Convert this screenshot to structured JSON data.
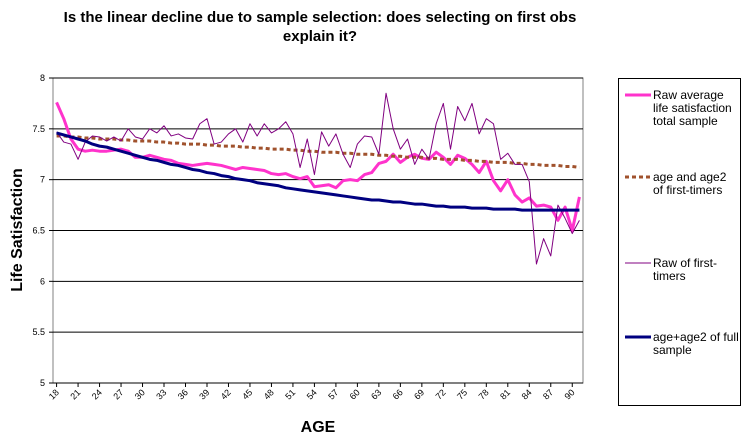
{
  "chart_data": {
    "type": "line",
    "title": "Is the linear decline due to sample selection: does selecting on first obs explain it?",
    "x_label": "AGE",
    "y_label": "Life Satisfaction",
    "x": [
      18,
      19,
      20,
      21,
      22,
      23,
      24,
      25,
      26,
      27,
      28,
      29,
      30,
      31,
      32,
      33,
      34,
      35,
      36,
      37,
      38,
      39,
      40,
      41,
      42,
      43,
      44,
      45,
      46,
      47,
      48,
      49,
      50,
      51,
      52,
      53,
      54,
      55,
      56,
      57,
      58,
      59,
      60,
      61,
      62,
      63,
      64,
      65,
      66,
      67,
      68,
      69,
      70,
      71,
      72,
      73,
      74,
      75,
      76,
      77,
      78,
      79,
      80,
      81,
      82,
      83,
      84,
      85,
      86,
      87,
      88,
      89,
      90,
      91
    ],
    "xlim": [
      17.5,
      91.5
    ],
    "xticks": [
      18,
      21,
      24,
      27,
      30,
      33,
      36,
      39,
      42,
      45,
      48,
      51,
      54,
      57,
      60,
      63,
      66,
      69,
      72,
      75,
      78,
      81,
      84,
      87,
      90
    ],
    "ylim": [
      5,
      8
    ],
    "yticks": [
      5,
      5.5,
      6,
      6.5,
      7,
      7.5,
      8
    ],
    "grid": true,
    "legend": "right",
    "series": [
      {
        "name": "Raw average life satisfaction total sample",
        "color": "#ff33cc",
        "values": [
          7.76,
          7.6,
          7.4,
          7.3,
          7.28,
          7.29,
          7.28,
          7.28,
          7.29,
          7.3,
          7.28,
          7.22,
          7.22,
          7.24,
          7.22,
          7.2,
          7.19,
          7.16,
          7.15,
          7.14,
          7.15,
          7.16,
          7.15,
          7.14,
          7.12,
          7.1,
          7.12,
          7.11,
          7.1,
          7.09,
          7.06,
          7.05,
          7.06,
          7.03,
          7.01,
          7.03,
          6.93,
          6.94,
          6.95,
          6.92,
          6.99,
          7.0,
          6.99,
          7.05,
          7.07,
          7.16,
          7.18,
          7.25,
          7.17,
          7.22,
          7.25,
          7.21,
          7.2,
          7.27,
          7.22,
          7.15,
          7.24,
          7.21,
          7.15,
          7.07,
          7.18,
          6.99,
          6.89,
          7.0,
          6.85,
          6.78,
          6.82,
          6.74,
          6.75,
          6.73,
          6.6,
          6.73,
          6.5,
          6.83
        ]
      },
      {
        "name": "age and age2 of first-timers",
        "color": "#a0522d",
        "values": [
          7.43,
          7.43,
          7.42,
          7.42,
          7.41,
          7.41,
          7.4,
          7.4,
          7.4,
          7.39,
          7.39,
          7.38,
          7.38,
          7.38,
          7.37,
          7.37,
          7.36,
          7.36,
          7.35,
          7.35,
          7.35,
          7.34,
          7.34,
          7.33,
          7.33,
          7.33,
          7.32,
          7.32,
          7.31,
          7.31,
          7.3,
          7.3,
          7.3,
          7.29,
          7.29,
          7.28,
          7.28,
          7.27,
          7.27,
          7.27,
          7.26,
          7.26,
          7.25,
          7.25,
          7.25,
          7.24,
          7.24,
          7.23,
          7.23,
          7.22,
          7.22,
          7.22,
          7.21,
          7.21,
          7.2,
          7.2,
          7.2,
          7.19,
          7.19,
          7.18,
          7.18,
          7.17,
          7.17,
          7.17,
          7.16,
          7.16,
          7.15,
          7.15,
          7.14,
          7.14,
          7.14,
          7.13,
          7.13,
          7.12
        ]
      },
      {
        "name": "Raw of first-timers",
        "color": "#800080",
        "values": [
          7.47,
          7.37,
          7.35,
          7.2,
          7.37,
          7.43,
          7.42,
          7.38,
          7.42,
          7.38,
          7.5,
          7.42,
          7.4,
          7.5,
          7.46,
          7.53,
          7.43,
          7.45,
          7.41,
          7.4,
          7.55,
          7.6,
          7.35,
          7.37,
          7.45,
          7.5,
          7.37,
          7.55,
          7.43,
          7.55,
          7.46,
          7.5,
          7.57,
          7.45,
          7.12,
          7.4,
          7.05,
          7.47,
          7.33,
          7.45,
          7.25,
          7.12,
          7.35,
          7.43,
          7.42,
          7.25,
          7.85,
          7.5,
          7.3,
          7.4,
          7.15,
          7.3,
          7.2,
          7.55,
          7.75,
          7.3,
          7.72,
          7.58,
          7.75,
          7.45,
          7.6,
          7.55,
          7.2,
          7.26,
          7.15,
          7.15,
          6.98,
          6.17,
          6.42,
          6.25,
          6.75,
          6.62,
          6.47,
          6.6
        ]
      },
      {
        "name": "age+age2 of full sample",
        "color": "#000080",
        "values": [
          7.46,
          7.44,
          7.42,
          7.4,
          7.38,
          7.35,
          7.33,
          7.32,
          7.3,
          7.28,
          7.26,
          7.24,
          7.22,
          7.2,
          7.19,
          7.17,
          7.15,
          7.14,
          7.12,
          7.1,
          7.09,
          7.07,
          7.06,
          7.04,
          7.03,
          7.01,
          7.0,
          6.99,
          6.97,
          6.96,
          6.95,
          6.94,
          6.92,
          6.91,
          6.9,
          6.89,
          6.88,
          6.87,
          6.86,
          6.85,
          6.84,
          6.83,
          6.82,
          6.81,
          6.8,
          6.8,
          6.79,
          6.78,
          6.78,
          6.77,
          6.76,
          6.76,
          6.75,
          6.74,
          6.74,
          6.73,
          6.73,
          6.73,
          6.72,
          6.72,
          6.72,
          6.71,
          6.71,
          6.71,
          6.71,
          6.7,
          6.7,
          6.7,
          6.7,
          6.7,
          6.7,
          6.7,
          6.7,
          6.7
        ]
      }
    ]
  }
}
